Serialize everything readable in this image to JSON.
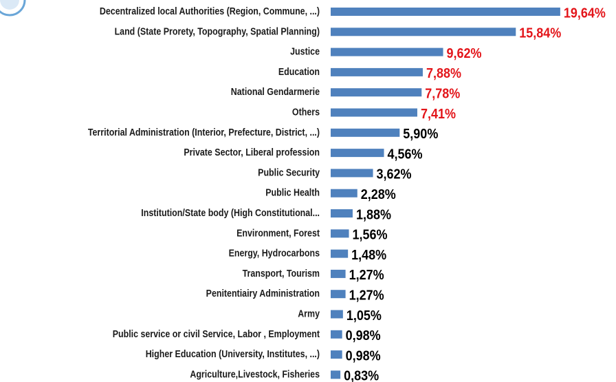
{
  "chart_data": {
    "type": "bar",
    "orientation": "horizontal",
    "categories": [
      "Decentralized local Authorities (Region, Commune, ...)",
      "Land (State Prorety, Topography, Spatial Planning)",
      "Justice",
      "Education",
      "National Gendarmerie",
      "Others",
      "Territorial Administration (Interior, Prefecture, District, ...)",
      "Private Sector, Liberal profession",
      "Public Security",
      "Public Health",
      "Institution/State body (High Constitutional...",
      "Environment, Forest",
      "Energy, Hydrocarbons",
      "Transport, Tourism",
      "Penitentiairy Administration",
      "Army",
      "Public service or civil Service, Labor , Employment",
      "Higher Education (University, Institutes, ...)",
      "Agriculture,Livestock, Fisheries"
    ],
    "values": [
      19.64,
      15.84,
      9.62,
      7.88,
      7.78,
      7.41,
      5.9,
      4.56,
      3.62,
      2.28,
      1.88,
      1.56,
      1.48,
      1.27,
      1.27,
      1.05,
      0.98,
      0.98,
      0.83
    ],
    "value_labels": [
      "19,64%",
      "15,84%",
      "9,62%",
      "7,88%",
      "7,78%",
      "7,41%",
      "5,90%",
      "4,56%",
      "3,62%",
      "2,28%",
      "1,88%",
      "1,56%",
      "1,48%",
      "1,27%",
      "1,27%",
      "1,05%",
      "0,98%",
      "0,98%",
      "0,83%"
    ],
    "value_label_colors": [
      "#e3151a",
      "#e3151a",
      "#e3151a",
      "#e3151a",
      "#e3151a",
      "#e3151a",
      "#000000",
      "#000000",
      "#000000",
      "#000000",
      "#000000",
      "#000000",
      "#000000",
      "#000000",
      "#000000",
      "#000000",
      "#000000",
      "#000000",
      "#000000"
    ],
    "color": "#4f81bd",
    "xlim": [
      0,
      20
    ]
  }
}
